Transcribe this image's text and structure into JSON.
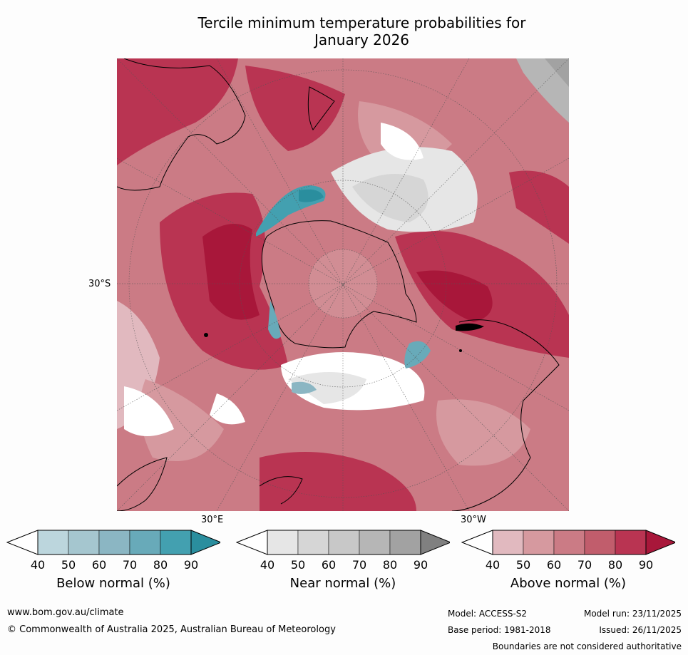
{
  "title": {
    "line1": "Tercile minimum temperature probabilities for",
    "line2": "January 2026"
  },
  "map": {
    "lat_label": "30°S",
    "lon_label_left": "30°E",
    "lon_label_right": "30°W"
  },
  "legend": {
    "below": {
      "label": "Below normal (%)",
      "ticks": [
        "40",
        "50",
        "60",
        "70",
        "80",
        "90"
      ],
      "colors": [
        "#ffffff",
        "#bcd6dd",
        "#a5c6cf",
        "#8bb6c3",
        "#68aab9",
        "#43a0b0",
        "#2a8e9e"
      ]
    },
    "near": {
      "label": "Near normal (%)",
      "ticks": [
        "40",
        "50",
        "60",
        "70",
        "80",
        "90"
      ],
      "colors": [
        "#ffffff",
        "#e6e6e6",
        "#d6d6d6",
        "#c8c8c8",
        "#b6b6b6",
        "#a2a2a2",
        "#808080"
      ]
    },
    "above": {
      "label": "Above normal (%)",
      "ticks": [
        "40",
        "50",
        "60",
        "70",
        "80",
        "90"
      ],
      "colors": [
        "#ffffff",
        "#e1b9bf",
        "#d6999f",
        "#cb7b85",
        "#c15d6c",
        "#b93452",
        "#a8173a"
      ]
    }
  },
  "footer": {
    "url": "www.bom.gov.au/climate",
    "copyright": "© Commonwealth of Australia 2025, Australian Bureau of Meteorology",
    "model": "Model: ACCESS-S2",
    "base_period": "Base period: 1981-2018",
    "model_run": "Model run: 23/11/2025",
    "issued": "Issued: 26/11/2025",
    "disclaimer": "Boundaries are not considered authoritative"
  }
}
